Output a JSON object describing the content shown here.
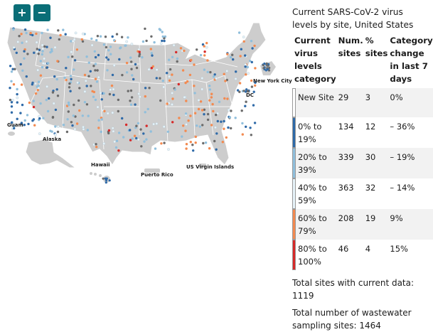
{
  "controls": {
    "zoom_in": "+",
    "zoom_out": "−"
  },
  "map": {
    "labels": [
      {
        "key": "guam",
        "text": "Guam"
      },
      {
        "key": "alaska",
        "text": "Alaska"
      },
      {
        "key": "hawaii",
        "text": "Hawaii"
      },
      {
        "key": "puerto_rico",
        "text": "Puerto Rico"
      },
      {
        "key": "usvi",
        "text": "US Virgin Islands"
      },
      {
        "key": "nyc",
        "text": "New York City"
      },
      {
        "key": "dc",
        "text": "DC"
      }
    ]
  },
  "legend": {
    "title": "Current SARS-CoV-2 virus levels by site, United States",
    "headers": {
      "category": "Current virus levels category",
      "num_sites": "Num. sites",
      "pct_sites": "% sites",
      "change": "Category change in last 7 days"
    },
    "rows": [
      {
        "category": "New Site",
        "num": "29",
        "pct": "3",
        "change": "0%",
        "color": "#ffffff"
      },
      {
        "category": "0% to 19%",
        "num": "134",
        "pct": "12",
        "change": "– 36%",
        "color": "#2f6aa8"
      },
      {
        "category": "20% to 39%",
        "num": "339",
        "pct": "30",
        "change": "– 19%",
        "color": "#90bfdc"
      },
      {
        "category": "40% to 59%",
        "num": "363",
        "pct": "32",
        "change": "– 14%",
        "color": "#e6f2f8"
      },
      {
        "category": "60% to 79%",
        "num": "208",
        "pct": "19",
        "change": "9%",
        "color": "#f38a50"
      },
      {
        "category": "80% to 100%",
        "num": "46",
        "pct": "4",
        "change": "15%",
        "color": "#d62a2a"
      }
    ]
  },
  "summary": {
    "current_sites": "Total sites with current data: 1119",
    "total_sites": "Total number of wastewater sampling sites: 1464"
  },
  "colors": {
    "land": "#cdcdcd",
    "border": "#ffffff",
    "nodata": "#6b6b6b",
    "dark_blue": "#2f6aa8",
    "light_blue": "#90bfdc",
    "pale": "#e6f2f8",
    "orange": "#f38a50",
    "red": "#d62a2a",
    "button": "#0a6e77"
  }
}
